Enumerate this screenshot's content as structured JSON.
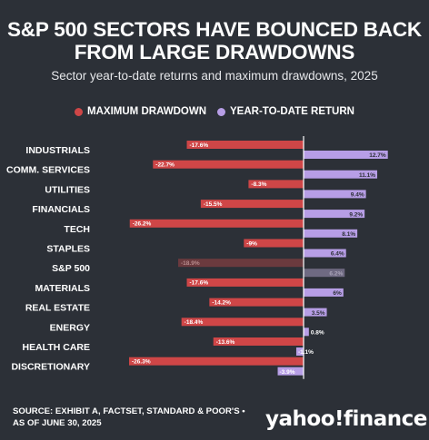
{
  "title": "S&P 500 SECTORS HAVE BOUNCED BACK FROM LARGE DRAWDOWNS",
  "subtitle": "Sector year-to-date returns and maximum drawdowns, 2025",
  "source": "SOURCE: EXHIBIT A, FACTSET, STANDARD & POOR'S • AS OF JUNE 30, 2025",
  "logo": "yahoo!finance",
  "colors": {
    "background": "#2c3037",
    "drawdown": "#cf4647",
    "return": "#b79ee6",
    "sp500_drawdown": "#6b3a3e",
    "sp500_return": "#6f6a82"
  },
  "chart_data": {
    "type": "bar",
    "orientation": "horizontal",
    "categories": [
      "INDUSTRIALS",
      "COMM. SERVICES",
      "UTILITIES",
      "FINANCIALS",
      "TECH",
      "STAPLES",
      "S&P 500",
      "MATERIALS",
      "REAL ESTATE",
      "ENERGY",
      "HEALTH CARE",
      "DISCRETIONARY"
    ],
    "series": [
      {
        "name": "MAXIMUM DRAWDOWN",
        "values": [
          -17.6,
          -22.7,
          -8.3,
          -15.5,
          -26.2,
          -9,
          -18.9,
          -17.6,
          -14.2,
          -18.4,
          -13.6,
          -26.3
        ],
        "labels": [
          "-17.6%",
          "-22.7%",
          "-8.3%",
          "-15.5%",
          "-26.2%",
          "-9%",
          "-18.9%",
          "-17.6%",
          "-14.2%",
          "-18.4%",
          "-13.6%",
          "-26.3%"
        ]
      },
      {
        "name": "YEAR-TO-DATE RETURN",
        "values": [
          12.7,
          11.1,
          9.4,
          9.2,
          8.1,
          6.4,
          6.2,
          6,
          3.5,
          0.8,
          -1.1,
          -3.9
        ],
        "labels": [
          "12.7%",
          "11.1%",
          "9.4%",
          "9.2%",
          "8.1%",
          "6.4%",
          "6.2%",
          "6%",
          "3.5%",
          "0.8%",
          "-1.1%",
          "-3.9%"
        ]
      }
    ],
    "highlight_category": "S&P 500",
    "legend_position": "top-center",
    "grid": false
  }
}
